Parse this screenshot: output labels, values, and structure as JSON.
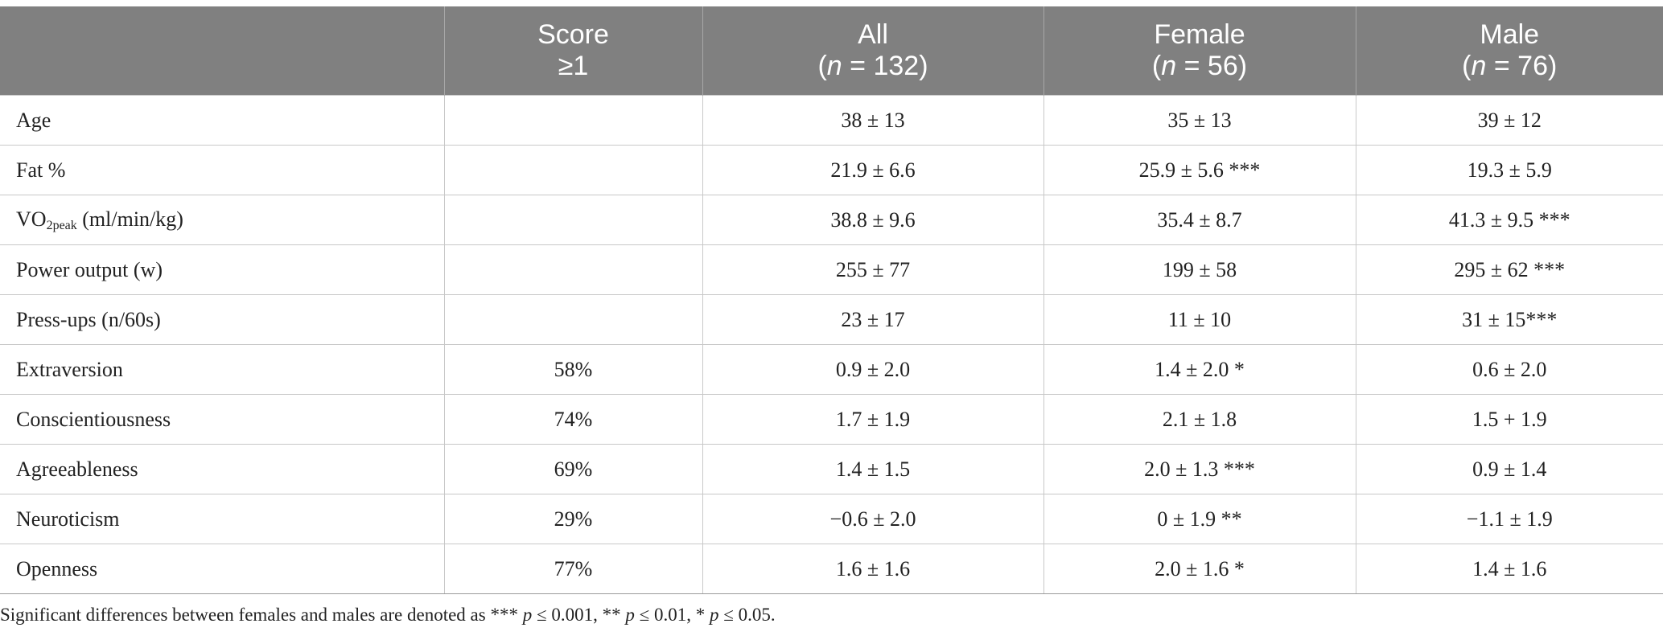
{
  "header": {
    "col0": "",
    "col1_line1": "Score",
    "col1_line2": "≥1",
    "col2_line1": "All",
    "col2_n": "n",
    "col2_rest": " = 132)",
    "col3_line1": "Female",
    "col3_n": "n",
    "col3_rest": " = 56)",
    "col4_line1": "Male",
    "col4_n": "n",
    "col4_rest": " = 76)",
    "open_paren": "("
  },
  "rows": [
    {
      "label": "Age",
      "score": "",
      "all": "38 ± 13",
      "female": "35 ± 13",
      "male": "39 ± 12"
    },
    {
      "label": "Fat %",
      "score": "",
      "all": "21.9 ± 6.6",
      "female": "25.9 ± 5.6 ***",
      "male": "19.3 ± 5.9"
    },
    {
      "label_main": "VO",
      "label_sub": "2peak",
      "label_rest": " (ml/min/kg)",
      "score": "",
      "all": "38.8 ± 9.6",
      "female": "35.4 ± 8.7",
      "male": "41.3 ± 9.5 ***"
    },
    {
      "label": "Power output (w)",
      "score": "",
      "all": "255 ± 77",
      "female": "199 ± 58",
      "male": "295 ± 62 ***"
    },
    {
      "label": "Press-ups (n/60s)",
      "score": "",
      "all": "23 ± 17",
      "female": "11 ± 10",
      "male": "31 ± 15***"
    },
    {
      "label": "Extraversion",
      "score": "58%",
      "all": "0.9 ± 2.0",
      "female": "1.4 ± 2.0 *",
      "male": "0.6 ± 2.0"
    },
    {
      "label": "Conscientiousness",
      "score": "74%",
      "all": "1.7 ± 1.9",
      "female": "2.1 ± 1.8",
      "male": "1.5 + 1.9"
    },
    {
      "label": "Agreeableness",
      "score": "69%",
      "all": "1.4 ± 1.5",
      "female": "2.0 ± 1.3 ***",
      "male": "0.9 ± 1.4"
    },
    {
      "label": "Neuroticism",
      "score": "29%",
      "all": "−0.6 ± 2.0",
      "female": "0 ± 1.9 **",
      "male": "−1.1 ± 1.9"
    },
    {
      "label": "Openness",
      "score": "77%",
      "all": "1.6 ± 1.6",
      "female": "2.0 ± 1.6 *",
      "male": "1.4 ± 1.6"
    }
  ],
  "footnote": {
    "part1": "Significant differences between females and males are denoted as *** ",
    "p1": "p",
    "part2": " ≤ 0.001, ** ",
    "p2": "p",
    "part3": " ≤ 0.01, * ",
    "p3": "p",
    "part4": " ≤ 0.05."
  }
}
